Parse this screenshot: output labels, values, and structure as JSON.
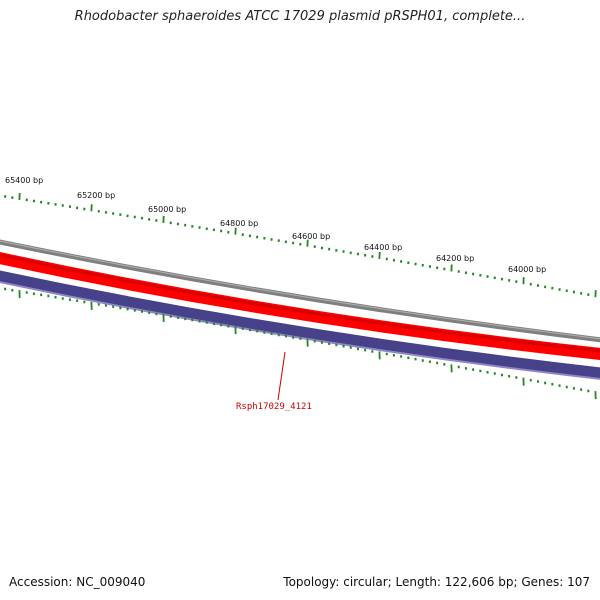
{
  "header": {
    "title": "Rhodobacter sphaeroides ATCC 17029 plasmid pRSPH01, complete..."
  },
  "map": {
    "scale_labels": [
      "65400 bp",
      "65200 bp",
      "65000 bp",
      "64800 bp",
      "64600 bp",
      "64400 bp",
      "64200 bp",
      "64000 bp"
    ],
    "gene_label": "Rsph17029_4121",
    "colors": {
      "backbone": "#808080",
      "forward_track": "#ff0000",
      "reverse_track": "#4b4589",
      "ticks": "#228822",
      "gene_label": "#cc0000"
    }
  },
  "footer": {
    "accession": "Accession: NC_009040",
    "summary": "Topology: circular; Length: 122,606 bp; Genes: 107"
  }
}
